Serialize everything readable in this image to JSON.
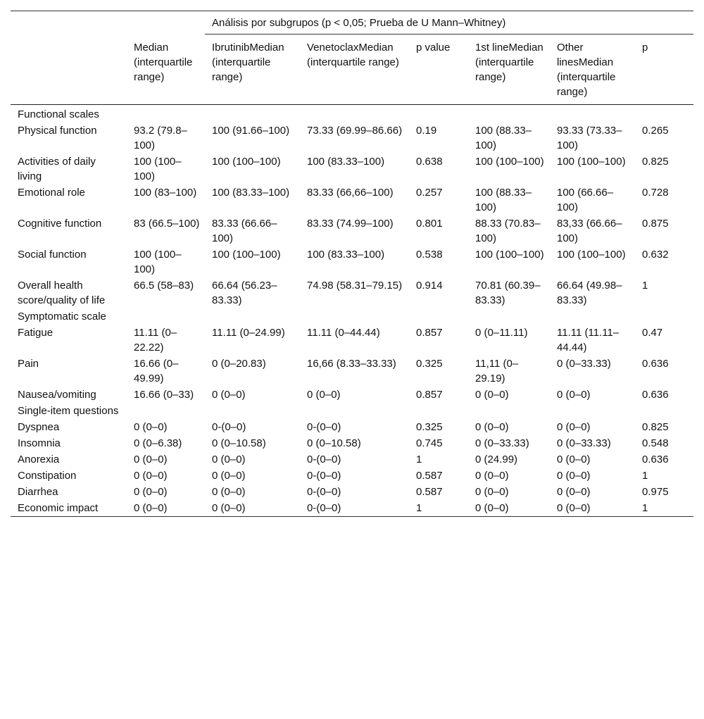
{
  "table": {
    "header_group": "Análisis por subgrupos (p < 0,05; Prueba de U Mann–Whitney)",
    "columns": [
      "Median (interquartile range)",
      "IbrutinibMedian (interquartile range)",
      "VenetoclaxMedian (interquartile range)",
      "p value",
      "1st lineMedian (interquartile range)",
      "Other linesMedian (interquartile range)",
      "p"
    ],
    "rows": [
      [
        "Functional scales"
      ],
      [
        "Physical function",
        "93.2 (79.8–100)",
        "100 (91.66–100)",
        "73.33 (69.99–86.66)",
        "0.19",
        "100 (88.33–100)",
        "93.33 (73.33–100)",
        "0.265"
      ],
      [
        "Activities of daily living",
        "100 (100–100)",
        "100 (100–100)",
        "100 (83.33–100)",
        "0.638",
        "100 (100–100)",
        "100 (100–100)",
        "0.825"
      ],
      [
        "Emotional role",
        "100 (83–100)",
        "100 (83.33–100)",
        "83.33 (66,66–100)",
        "0.257",
        "100 (88.33–100)",
        "100 (66.66–100)",
        "0.728"
      ],
      [
        "Cognitive function",
        "83 (66.5–100)",
        "83.33 (66.66–100)",
        "83.33 (74.99–100)",
        "0.801",
        "88.33 (70.83–100)",
        "83,33 (66.66–100)",
        "0.875"
      ],
      [
        "Social function",
        "100 (100–100)",
        "100 (100–100)",
        "100 (83.33–100)",
        "0.538",
        "100 (100–100)",
        "100 (100–100)",
        "0.632"
      ],
      [
        "Overall health score/quality of life",
        "66.5 (58–83)",
        "66.64 (56.23–83.33)",
        "74.98 (58.31–79.15)",
        "0.914",
        "70.81 (60.39–83.33)",
        "66.64 (49.98–83.33)",
        "1"
      ],
      [
        "Symptomatic scale"
      ],
      [
        "Fatigue",
        "11.11 (0–22.22)",
        "11.11 (0–24.99)",
        "11.11 (0–44.44)",
        "0.857",
        "0 (0–11.11)",
        "11.11 (11.11–44.44)",
        "0.47"
      ],
      [
        "Pain",
        "16.66 (0–49.99)",
        "0 (0–20.83)",
        "16,66 (8.33–33.33)",
        "0.325",
        "11,11 (0–29.19)",
        "0 (0–33.33)",
        "0.636"
      ],
      [
        "Nausea/vomiting",
        "16.66 (0–33)",
        "0 (0–0)",
        "0 (0–0)",
        "0.857",
        "0 (0–0)",
        "0 (0–0)",
        "0.636"
      ],
      [
        "Single-item questions"
      ],
      [
        "Dyspnea",
        "0 (0–0)",
        "0-(0–0)",
        "0-(0–0)",
        "0.325",
        "0 (0–0)",
        "0 (0–0)",
        "0.825"
      ],
      [
        "Insomnia",
        "0 (0–6.38)",
        "0 (0–10.58)",
        "0 (0–10.58)",
        "0.745",
        "0 (0–33.33)",
        "0 (0–33.33)",
        "0.548"
      ],
      [
        "Anorexia",
        "0 (0–0)",
        "0 (0–0)",
        "0-(0–0)",
        "1",
        "0 (24.99)",
        "0 (0–0)",
        "0.636"
      ],
      [
        "Constipation",
        "0 (0–0)",
        "0 (0–0)",
        "0-(0–0)",
        "0.587",
        "0 (0–0)",
        "0 (0–0)",
        "1"
      ],
      [
        "Diarrhea",
        "0 (0–0)",
        "0 (0–0)",
        "0-(0–0)",
        "0.587",
        "0 (0–0)",
        "0 (0–0)",
        "0.975"
      ],
      [
        "Economic impact",
        "0 (0–0)",
        "0 (0–0)",
        "0-(0–0)",
        "1",
        "0 (0–0)",
        "0 (0–0)",
        "1"
      ]
    ]
  }
}
